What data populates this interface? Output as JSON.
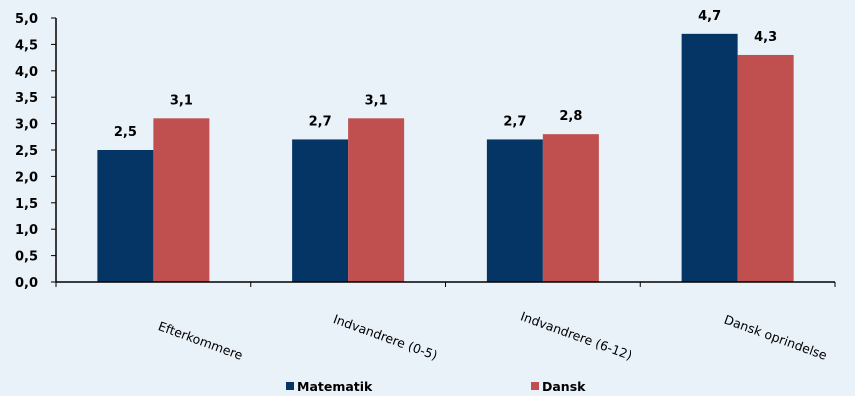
{
  "colors": {
    "background": "#e9f1f9",
    "axis": "#000000",
    "matematik": "#043565",
    "dansk": "#c04f4f"
  },
  "chart_data": {
    "type": "bar",
    "categories": [
      "Efterkommere",
      "Indvandrere  (0-5)",
      "Indvandrere  (6-12)",
      "Dansk oprindelse"
    ],
    "series": [
      {
        "name": "Matematik",
        "values": [
          2.5,
          2.7,
          2.7,
          4.7
        ],
        "labels": [
          "2,5",
          "2,7",
          "2,7",
          "4,7"
        ],
        "color": "#043565"
      },
      {
        "name": "Dansk",
        "values": [
          3.1,
          3.1,
          2.8,
          4.3
        ],
        "labels": [
          "3,1",
          "3,1",
          "2,8",
          "4,3"
        ],
        "color": "#c04f4f"
      }
    ],
    "title": "",
    "xlabel": "",
    "ylabel": "",
    "ylim": [
      0,
      5
    ],
    "yticks": [
      "0,0",
      "0,5",
      "1,0",
      "1,5",
      "2,0",
      "2,5",
      "3,0",
      "3,5",
      "4,0",
      "4,5",
      "5,0"
    ],
    "grid": false,
    "legend_position": "bottom"
  }
}
